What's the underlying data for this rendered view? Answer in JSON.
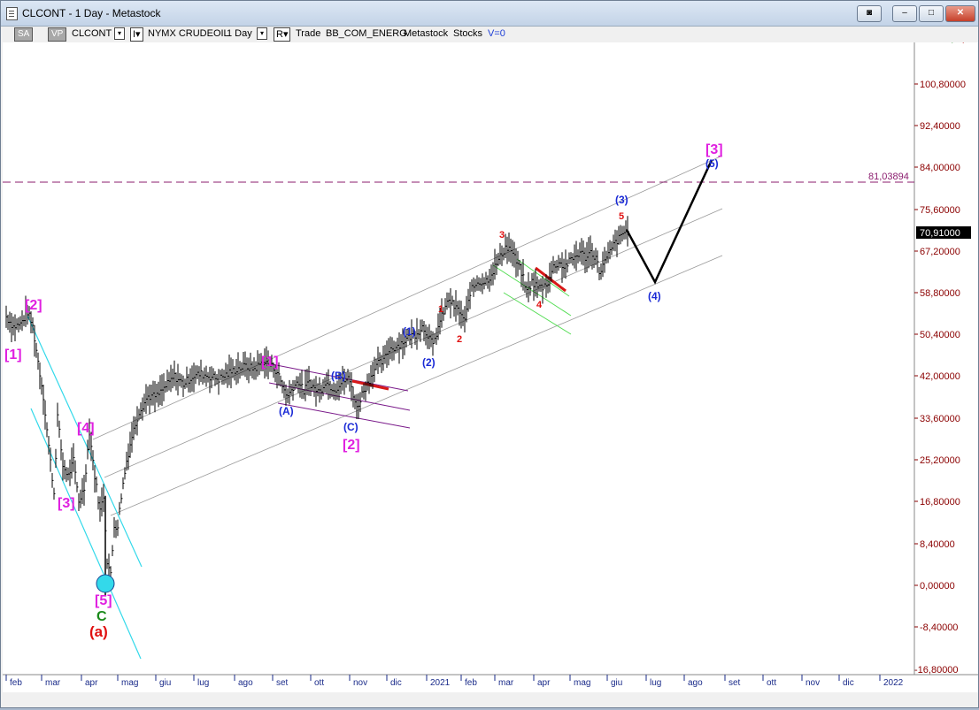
{
  "window": {
    "title": "CLCONT - 1 Day - Metastock",
    "buttons": {
      "restore": "◙",
      "minimize": "–",
      "maximize": "□",
      "close": "✕"
    }
  },
  "toolbar": {
    "sa": "SA",
    "vp": "VP",
    "symbol": "CLCONT",
    "dropdown": "▾",
    "indicator_glyph": "I▾",
    "description": "NYMX CRUDEOIL",
    "interval": "1 Day",
    "r_glyph": "R▾",
    "mode": "Trade",
    "list": "BB_COM_ENERG",
    "source": "Metastock",
    "category": "Stocks",
    "volume": "V=0",
    "icon": "tools-icon"
  },
  "chart_data": {
    "type": "line",
    "y_tick_labels": [
      "100,80000",
      "92,40000",
      "84,00000",
      "75,60000",
      "67,20000",
      "58,80000",
      "50,40000",
      "42,00000",
      "33,60000",
      "25,20000",
      "16,80000",
      "8,40000",
      "0,00000",
      "-8,40000",
      "-16,80000"
    ],
    "x_tick_labels": [
      "feb",
      "mar",
      "apr",
      "mag",
      "giu",
      "lug",
      "ago",
      "set",
      "ott",
      "nov",
      "dic",
      "2021",
      "feb",
      "mar",
      "apr",
      "mag",
      "giu",
      "lug",
      "ago",
      "set",
      "ott",
      "nov",
      "dic",
      "2022"
    ],
    "ylim": [
      -16.8,
      100.8
    ],
    "last_price": "70,91000",
    "hline_value": "81,03894",
    "wave_labels": {
      "w2_major": "[2]",
      "w1_major": "[1]",
      "w4_major": "[4]",
      "w3_major": "[3]",
      "w5_major": "[5]",
      "wave_c": "C",
      "wave_a": "(a)",
      "w1_new": "[1]",
      "wa": "(A)",
      "wb": "(B)",
      "wc": "(C)",
      "w2_new": "[2]",
      "w1_int": "(1)",
      "w2_int": "(2)",
      "sw1": "1",
      "sw2": "2",
      "sw3": "3",
      "sw4": "4",
      "sw5": "5",
      "w3_int": "(3)",
      "w4_int": "(4)",
      "w3_target": "[3]",
      "w5_int": "(5)"
    },
    "price_keypoints": [
      [
        0,
        54.0
      ],
      [
        8,
        52.0
      ],
      [
        16,
        52.5
      ],
      [
        24,
        55.0
      ],
      [
        30,
        52.0
      ],
      [
        36,
        45.0
      ],
      [
        42,
        38.0
      ],
      [
        48,
        28.0
      ],
      [
        54,
        18.5
      ],
      [
        58,
        34.0
      ],
      [
        64,
        24.0
      ],
      [
        70,
        22.0
      ],
      [
        76,
        25.0
      ],
      [
        82,
        17.0
      ],
      [
        88,
        19.5
      ],
      [
        94,
        31.0
      ],
      [
        100,
        22.0
      ],
      [
        106,
        15.0
      ],
      [
        110,
        18.0
      ],
      [
        114,
        5.0
      ],
      [
        118,
        2.0
      ],
      [
        122,
        12.0
      ],
      [
        126,
        12.0
      ],
      [
        130,
        18.0
      ],
      [
        136,
        25.0
      ],
      [
        142,
        30.0
      ],
      [
        150,
        35.0
      ],
      [
        160,
        38.0
      ],
      [
        170,
        38.0
      ],
      [
        180,
        40.0
      ],
      [
        190,
        42.0
      ],
      [
        200,
        40.5
      ],
      [
        210,
        42.0
      ],
      [
        220,
        42.5
      ],
      [
        230,
        42.0
      ],
      [
        240,
        41.5
      ],
      [
        250,
        42.5
      ],
      [
        260,
        43.5
      ],
      [
        270,
        44.0
      ],
      [
        280,
        43.5
      ],
      [
        290,
        45.0
      ],
      [
        300,
        44.0
      ],
      [
        306,
        43.0
      ],
      [
        312,
        40.0
      ],
      [
        318,
        38.0
      ],
      [
        324,
        40.0
      ],
      [
        330,
        41.0
      ],
      [
        336,
        39.0
      ],
      [
        342,
        41.0
      ],
      [
        348,
        39.5
      ],
      [
        354,
        39.0
      ],
      [
        360,
        41.0
      ],
      [
        366,
        40.0
      ],
      [
        372,
        39.5
      ],
      [
        380,
        41.0
      ],
      [
        386,
        41.5
      ],
      [
        390,
        40.0
      ],
      [
        396,
        35.5
      ],
      [
        402,
        38.5
      ],
      [
        408,
        40.5
      ],
      [
        414,
        43.0
      ],
      [
        420,
        44.5
      ],
      [
        426,
        45.0
      ],
      [
        432,
        47.5
      ],
      [
        440,
        48.0
      ],
      [
        448,
        49.0
      ],
      [
        456,
        50.0
      ],
      [
        462,
        50.5
      ],
      [
        470,
        52.0
      ],
      [
        476,
        50.5
      ],
      [
        482,
        48.0
      ],
      [
        488,
        52.0
      ],
      [
        494,
        55.0
      ],
      [
        500,
        57.5
      ],
      [
        506,
        56.0
      ],
      [
        512,
        55.0
      ],
      [
        518,
        53.0
      ],
      [
        524,
        59.0
      ],
      [
        532,
        61.0
      ],
      [
        540,
        61.0
      ],
      [
        546,
        62.0
      ],
      [
        552,
        64.0
      ],
      [
        558,
        66.0
      ],
      [
        564,
        68.0
      ],
      [
        570,
        67.5
      ],
      [
        576,
        65.0
      ],
      [
        582,
        63.0
      ],
      [
        588,
        59.0
      ],
      [
        594,
        61.0
      ],
      [
        600,
        60.0
      ],
      [
        606,
        60.0
      ],
      [
        612,
        61.0
      ],
      [
        618,
        64.0
      ],
      [
        624,
        65.0
      ],
      [
        630,
        64.0
      ],
      [
        636,
        65.0
      ],
      [
        642,
        66.0
      ],
      [
        648,
        67.0
      ],
      [
        654,
        66.0
      ],
      [
        660,
        67.0
      ],
      [
        666,
        66.0
      ],
      [
        670,
        63.0
      ],
      [
        676,
        65.0
      ],
      [
        682,
        67.0
      ],
      [
        688,
        69.0
      ],
      [
        694,
        70.0
      ],
      [
        700,
        71.5
      ],
      [
        704,
        71.0
      ]
    ]
  }
}
